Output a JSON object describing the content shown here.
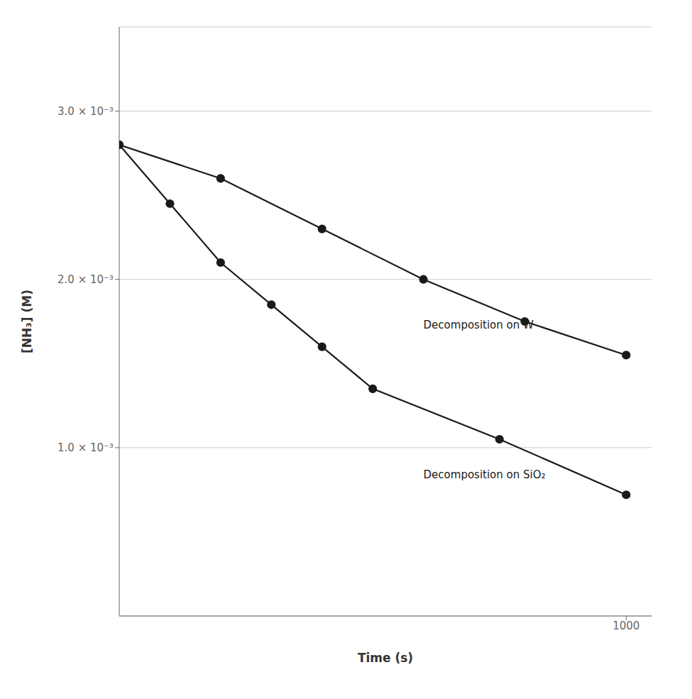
{
  "chart_data": {
    "type": "line",
    "xlabel": "Time (s)",
    "ylabel": "[NH₃] (M)",
    "xlim": [
      0,
      1050
    ],
    "ylim": [
      0,
      0.0035
    ],
    "xticks": [
      1000
    ],
    "yticks": [
      {
        "value": 0.001,
        "label": "1.0 × 10⁻³"
      },
      {
        "value": 0.002,
        "label": "2.0 × 10⁻³"
      },
      {
        "value": 0.003,
        "label": "3.0 × 10⁻³"
      }
    ],
    "grid": true,
    "series": [
      {
        "color": "#1a1a1a",
        "marker": "circle",
        "x": [
          0,
          200,
          400,
          600,
          800,
          1000
        ],
        "values": [
          0.0028,
          0.0026,
          0.0023,
          0.002,
          0.00175,
          0.00155
        ]
      },
      {
        "color": "#1a1a1a",
        "marker": "circle",
        "x": [
          0,
          100,
          200,
          300,
          400,
          500,
          750,
          1000
        ],
        "values": [
          0.0028,
          0.00245,
          0.0021,
          0.00185,
          0.0016,
          0.00135,
          0.00105,
          0.00072
        ]
      }
    ],
    "annotations": [
      {
        "text": "Decomposition on W",
        "x": 600,
        "y": 0.00173
      },
      {
        "text": "Decomposition on SiO₂",
        "x": 600,
        "y": 0.00084
      }
    ]
  }
}
